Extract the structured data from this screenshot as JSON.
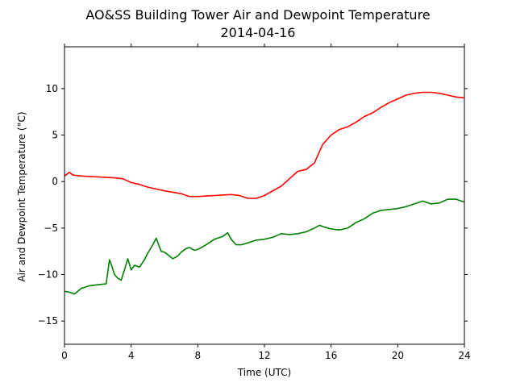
{
  "chart_data": {
    "type": "line",
    "title": "AO&SS Building Tower Air and Dewpoint Temperature",
    "subtitle": "2014-04-16",
    "xlabel": "Time (UTC)",
    "ylabel": "Air and Dewpoint Temperature (°C)",
    "xlim": [
      0,
      24
    ],
    "ylim": [
      -17.5,
      14.5
    ],
    "xticks": [
      0,
      4,
      8,
      12,
      16,
      20,
      24
    ],
    "yticks": [
      -15,
      -10,
      -5,
      0,
      5,
      10
    ],
    "grid": false,
    "series": [
      {
        "color": "#ff0000",
        "x": [
          0,
          0.3,
          0.5,
          1,
          2,
          3,
          3.5,
          4,
          4.5,
          5,
          6,
          7,
          7.5,
          8,
          9,
          10,
          10.5,
          11,
          11.5,
          12,
          12.5,
          13,
          13.5,
          14,
          14.5,
          15,
          15.5,
          16,
          16.5,
          17,
          17.5,
          18,
          18.5,
          19,
          19.5,
          20,
          20.5,
          21,
          21.5,
          22,
          22.5,
          23,
          23.5,
          24
        ],
        "y": [
          0.6,
          1.0,
          0.7,
          0.6,
          0.5,
          0.4,
          0.3,
          -0.1,
          -0.3,
          -0.6,
          -1.0,
          -1.3,
          -1.6,
          -1.6,
          -1.5,
          -1.4,
          -1.5,
          -1.8,
          -1.8,
          -1.5,
          -1.0,
          -0.5,
          0.3,
          1.1,
          1.3,
          2.0,
          4.0,
          5.0,
          5.6,
          5.9,
          6.4,
          7.0,
          7.4,
          8.0,
          8.5,
          8.9,
          9.3,
          9.5,
          9.6,
          9.6,
          9.5,
          9.3,
          9.1,
          9.0
        ]
      },
      {
        "color": "#008000",
        "x": [
          0,
          0.3,
          0.6,
          1,
          1.5,
          2,
          2.5,
          2.7,
          2.8,
          3,
          3.2,
          3.4,
          3.6,
          3.8,
          4,
          4.2,
          4.5,
          4.8,
          5,
          5.3,
          5.5,
          5.8,
          6,
          6.3,
          6.5,
          6.8,
          7,
          7.3,
          7.5,
          7.8,
          8,
          8.5,
          9,
          9.5,
          9.8,
          10,
          10.3,
          10.6,
          11,
          11.5,
          12,
          12.5,
          13,
          13.5,
          14,
          14.5,
          15,
          15.3,
          15.6,
          16,
          16.5,
          17,
          17.5,
          18,
          18.5,
          19,
          19.5,
          20,
          20.5,
          21,
          21.5,
          22,
          22.5,
          23,
          23.5,
          24
        ],
        "y": [
          -11.8,
          -11.9,
          -12.1,
          -11.5,
          -11.2,
          -11.1,
          -11.0,
          -8.4,
          -8.9,
          -10.0,
          -10.4,
          -10.6,
          -9.5,
          -8.3,
          -9.5,
          -9.0,
          -9.2,
          -8.4,
          -7.7,
          -6.8,
          -6.1,
          -7.5,
          -7.6,
          -8.0,
          -8.3,
          -8.0,
          -7.6,
          -7.2,
          -7.1,
          -7.4,
          -7.3,
          -6.8,
          -6.2,
          -5.9,
          -5.5,
          -6.2,
          -6.8,
          -6.8,
          -6.6,
          -6.3,
          -6.2,
          -6.0,
          -5.6,
          -5.7,
          -5.6,
          -5.4,
          -5.0,
          -4.7,
          -4.9,
          -5.1,
          -5.2,
          -5.0,
          -4.4,
          -4.0,
          -3.4,
          -3.1,
          -3.0,
          -2.9,
          -2.7,
          -2.4,
          -2.1,
          -2.4,
          -2.3,
          -1.9,
          -1.9,
          -2.2
        ]
      }
    ]
  }
}
